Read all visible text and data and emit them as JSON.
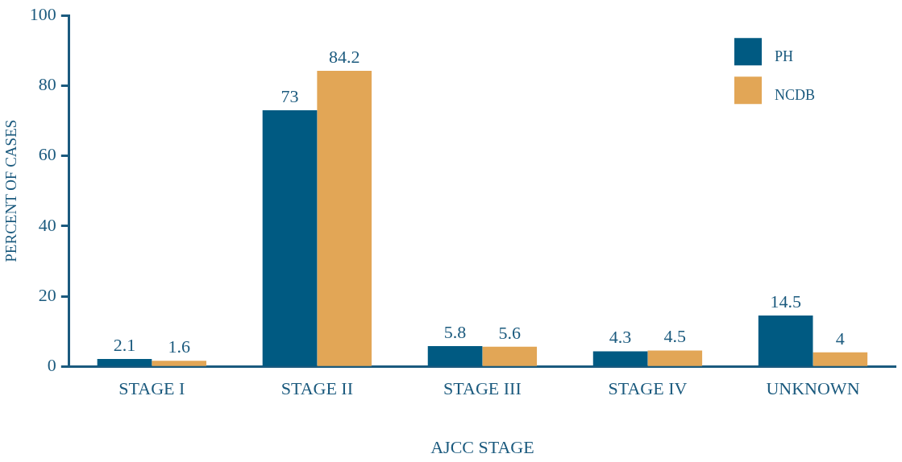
{
  "chart_data": {
    "type": "bar",
    "xlabel": "AJCC STAGE",
    "ylabel": "PERCENT OF CASES",
    "categories": [
      "STAGE I",
      "STAGE II",
      "STAGE III",
      "STAGE IV",
      "UNKNOWN"
    ],
    "series": [
      {
        "name": "PH",
        "color": "#005a82",
        "values": [
          2.1,
          73,
          5.8,
          4.3,
          14.5
        ]
      },
      {
        "name": "NCDB",
        "color": "#e2a656",
        "values": [
          1.6,
          84.2,
          5.6,
          4.5,
          4
        ]
      }
    ],
    "ylim": [
      0,
      100
    ],
    "yticks": [
      0,
      20,
      40,
      60,
      80,
      100
    ],
    "grid": false,
    "legend": "top right",
    "data_labels": true
  }
}
